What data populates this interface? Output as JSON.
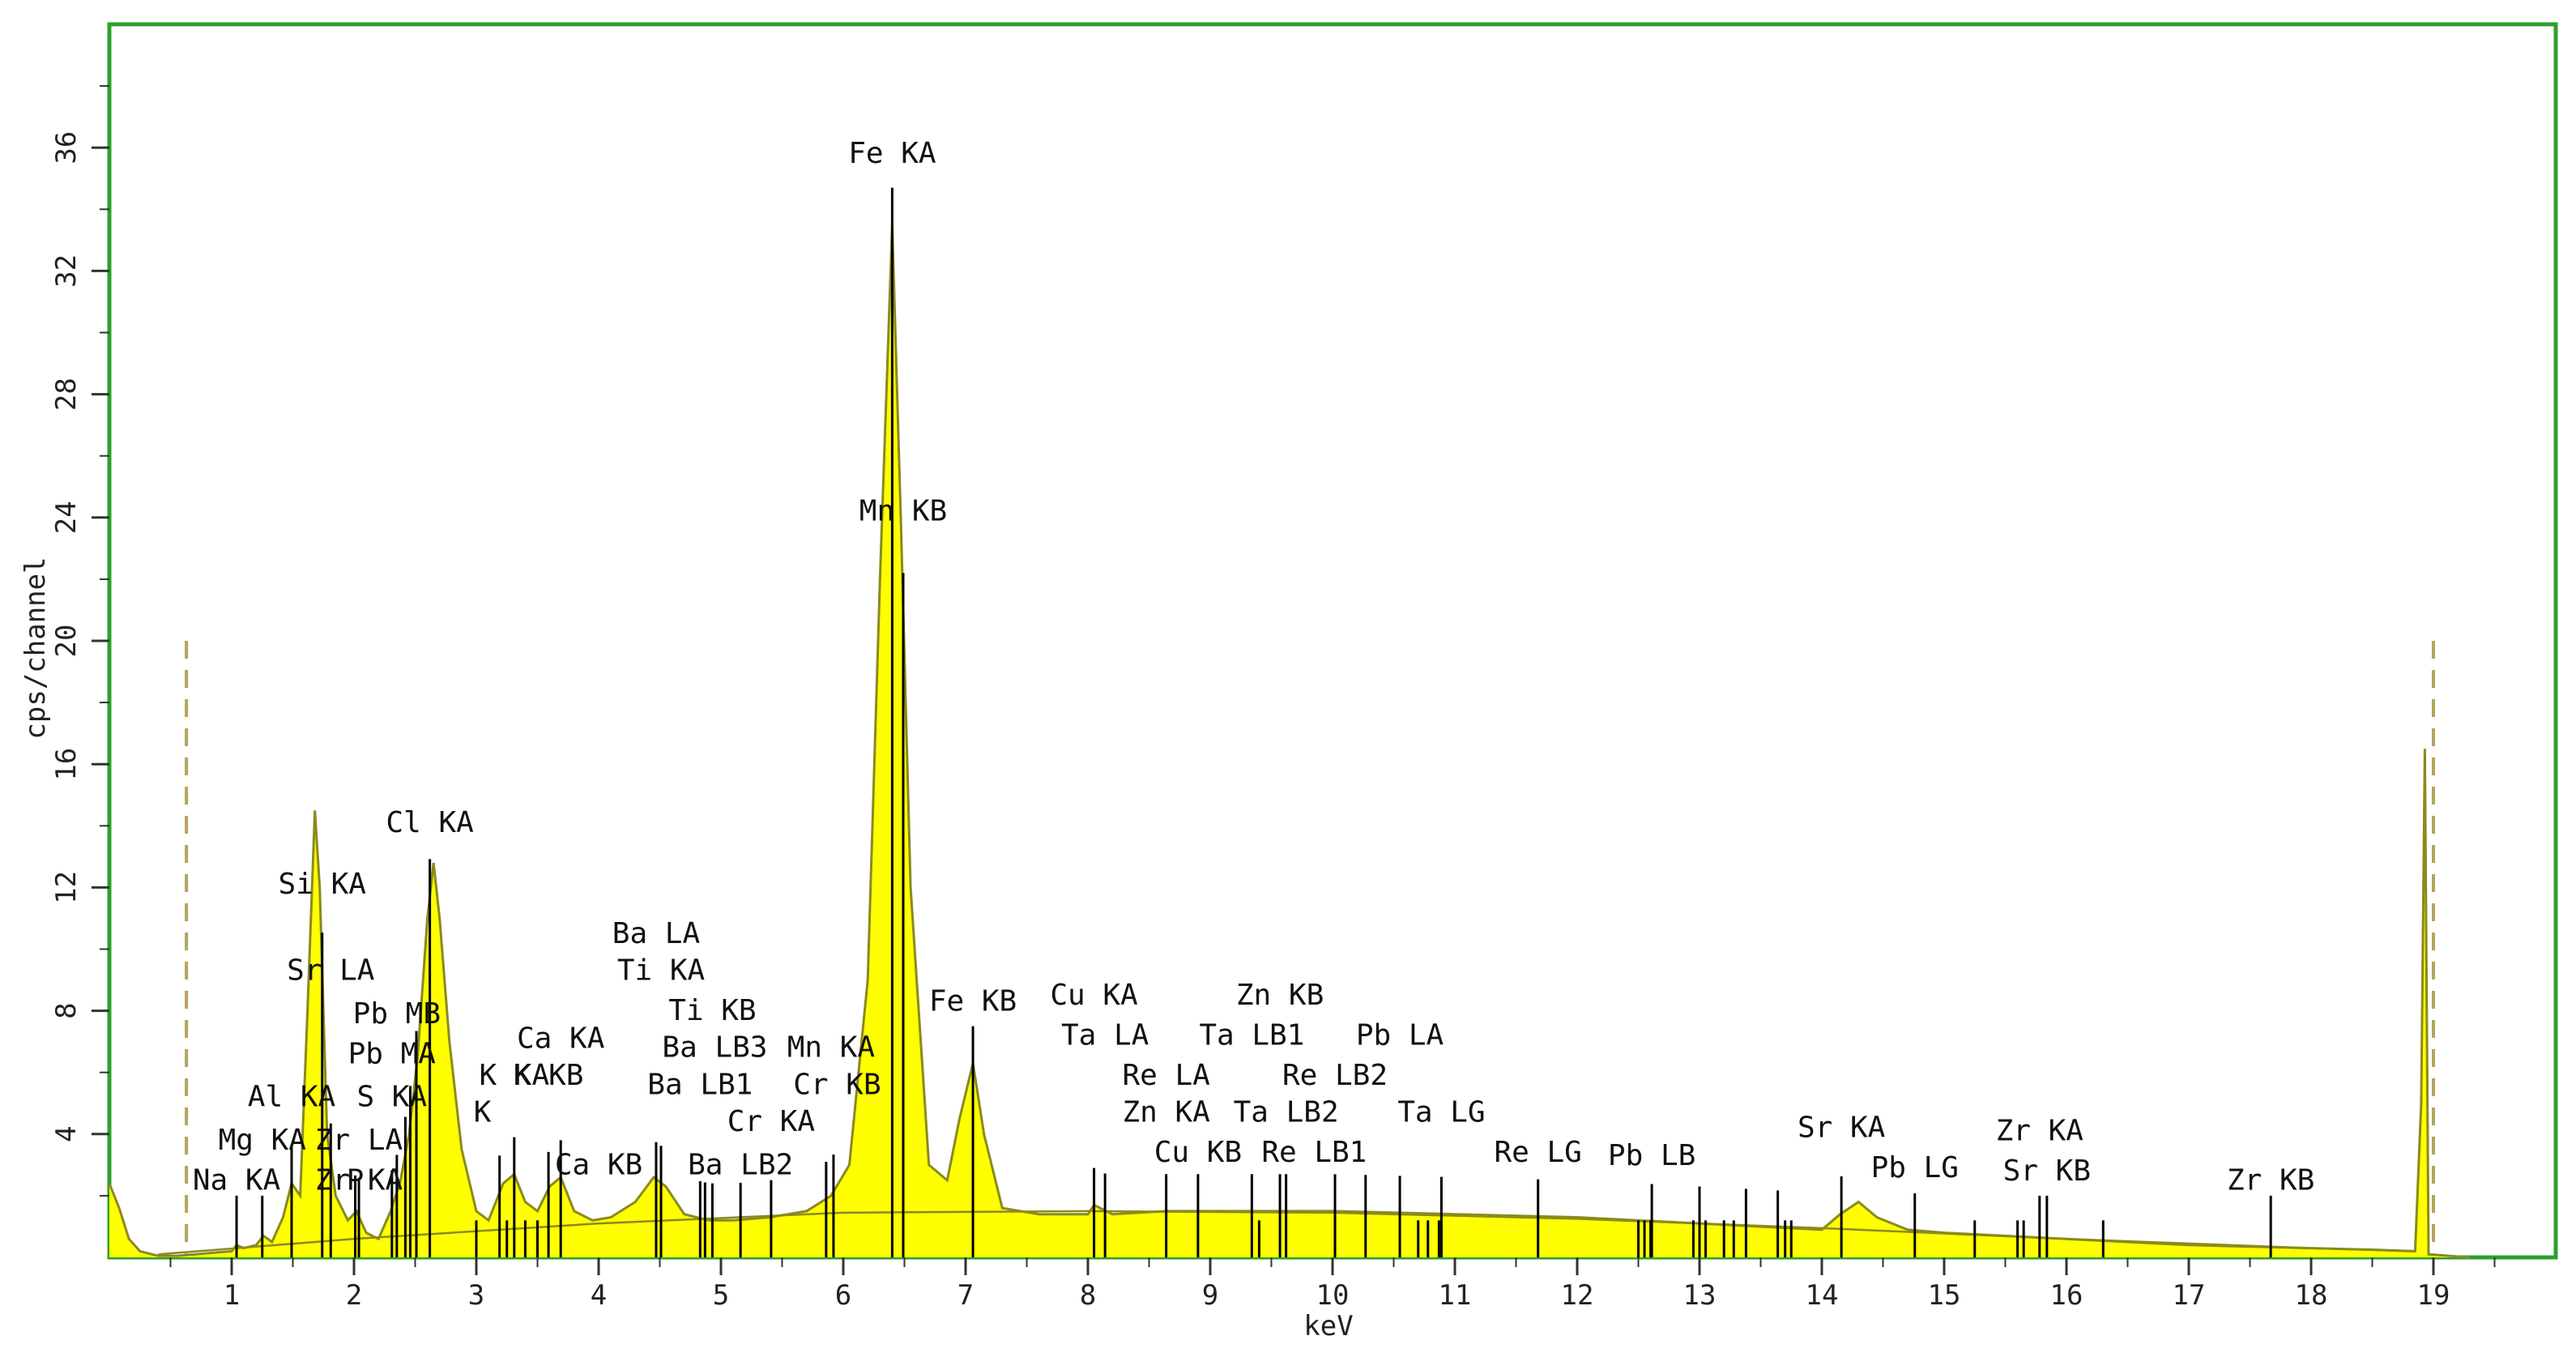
{
  "chart_data": {
    "type": "area",
    "xlabel": "keV",
    "ylabel": "cps/channel",
    "xlim": [
      0,
      20
    ],
    "ylim": [
      0,
      40
    ],
    "x_ticks": [
      1,
      2,
      3,
      4,
      5,
      6,
      7,
      8,
      9,
      10,
      11,
      12,
      13,
      14,
      15,
      16,
      17,
      18,
      19
    ],
    "y_ticks": [
      4,
      8,
      12,
      16,
      20,
      24,
      28,
      32,
      36
    ],
    "grid": false,
    "colors": {
      "frame": "#2ca02c",
      "fill": "#ffff00",
      "outline": "#8a8a20",
      "marker": "#000000",
      "roi": "#b5a45a"
    },
    "roi": [
      0.63,
      19.0
    ],
    "spectrum": [
      [
        0.0,
        2.4
      ],
      [
        0.08,
        1.6
      ],
      [
        0.16,
        0.6
      ],
      [
        0.25,
        0.2
      ],
      [
        0.4,
        0.05
      ],
      [
        0.55,
        0.05
      ],
      [
        0.7,
        0.1
      ],
      [
        0.85,
        0.15
      ],
      [
        1.0,
        0.2
      ],
      [
        1.04,
        0.4
      ],
      [
        1.1,
        0.3
      ],
      [
        1.2,
        0.4
      ],
      [
        1.26,
        0.7
      ],
      [
        1.33,
        0.5
      ],
      [
        1.42,
        1.3
      ],
      [
        1.49,
        2.4
      ],
      [
        1.56,
        2.0
      ],
      [
        1.62,
        8.0
      ],
      [
        1.68,
        14.5
      ],
      [
        1.72,
        12.0
      ],
      [
        1.78,
        4.0
      ],
      [
        1.85,
        2.0
      ],
      [
        1.95,
        1.2
      ],
      [
        2.02,
        1.5
      ],
      [
        2.1,
        0.8
      ],
      [
        2.2,
        0.6
      ],
      [
        2.3,
        1.5
      ],
      [
        2.38,
        2.5
      ],
      [
        2.45,
        4.0
      ],
      [
        2.52,
        6.5
      ],
      [
        2.6,
        11.0
      ],
      [
        2.65,
        12.8
      ],
      [
        2.7,
        11.0
      ],
      [
        2.78,
        7.0
      ],
      [
        2.88,
        3.5
      ],
      [
        3.0,
        1.5
      ],
      [
        3.1,
        1.2
      ],
      [
        3.22,
        2.4
      ],
      [
        3.31,
        2.7
      ],
      [
        3.4,
        1.8
      ],
      [
        3.5,
        1.5
      ],
      [
        3.6,
        2.3
      ],
      [
        3.69,
        2.6
      ],
      [
        3.8,
        1.5
      ],
      [
        3.95,
        1.2
      ],
      [
        4.1,
        1.3
      ],
      [
        4.3,
        1.8
      ],
      [
        4.45,
        2.6
      ],
      [
        4.55,
        2.3
      ],
      [
        4.7,
        1.4
      ],
      [
        4.9,
        1.2
      ],
      [
        5.1,
        1.2
      ],
      [
        5.4,
        1.3
      ],
      [
        5.7,
        1.5
      ],
      [
        5.9,
        2.0
      ],
      [
        6.05,
        3.0
      ],
      [
        6.2,
        9.0
      ],
      [
        6.3,
        22.0
      ],
      [
        6.4,
        33.5
      ],
      [
        6.47,
        24.0
      ],
      [
        6.55,
        12.0
      ],
      [
        6.7,
        3.0
      ],
      [
        6.85,
        2.5
      ],
      [
        6.95,
        4.5
      ],
      [
        7.06,
        6.3
      ],
      [
        7.15,
        4.0
      ],
      [
        7.3,
        1.6
      ],
      [
        7.6,
        1.4
      ],
      [
        8.0,
        1.4
      ],
      [
        8.05,
        1.7
      ],
      [
        8.2,
        1.4
      ],
      [
        8.64,
        1.5
      ],
      [
        9.0,
        1.5
      ],
      [
        10.0,
        1.5
      ],
      [
        11.0,
        1.4
      ],
      [
        12.0,
        1.3
      ],
      [
        13.0,
        1.1
      ],
      [
        13.5,
        1.0
      ],
      [
        14.0,
        0.9
      ],
      [
        14.15,
        1.4
      ],
      [
        14.3,
        1.8
      ],
      [
        14.45,
        1.3
      ],
      [
        14.7,
        0.9
      ],
      [
        15.0,
        0.8
      ],
      [
        15.5,
        0.7
      ],
      [
        16.0,
        0.6
      ],
      [
        16.5,
        0.5
      ],
      [
        17.0,
        0.4
      ],
      [
        17.5,
        0.35
      ],
      [
        18.0,
        0.3
      ],
      [
        18.5,
        0.25
      ],
      [
        18.85,
        0.2
      ],
      [
        18.9,
        5.0
      ],
      [
        18.93,
        16.5
      ],
      [
        18.96,
        0.1
      ],
      [
        19.3,
        0.0
      ]
    ],
    "markers": [
      1.04,
      1.25,
      1.49,
      1.74,
      1.81,
      2.01,
      2.04,
      2.31,
      2.35,
      2.42,
      2.46,
      2.51,
      2.62,
      3.19,
      3.31,
      3.59,
      3.69,
      4.47,
      4.51,
      4.83,
      4.87,
      4.93,
      5.16,
      5.41,
      5.86,
      5.92,
      6.4,
      6.49,
      7.06,
      8.05,
      8.14,
      8.64,
      8.9,
      9.34,
      9.57,
      9.62,
      10.02,
      10.27,
      10.55,
      10.89,
      11.68,
      12.61,
      13.0,
      13.38,
      13.64,
      14.16,
      14.76,
      15.78,
      15.84,
      17.67
    ],
    "minor_markers": [
      3.0,
      3.25,
      3.4,
      3.5,
      9.4,
      10.7,
      10.78,
      10.87,
      12.5,
      12.55,
      12.6,
      12.95,
      13.05,
      13.2,
      13.28,
      13.7,
      13.75,
      15.25,
      15.6,
      15.65,
      16.3
    ],
    "peak_labels": [
      {
        "text": "Fe  KA",
        "x": 6.4,
        "y": 35.5
      },
      {
        "text": "Mn  KB",
        "x": 6.49,
        "y": 23.9
      },
      {
        "text": "Cl  KA",
        "x": 2.62,
        "y": 13.8
      },
      {
        "text": "Si  KA",
        "x": 1.74,
        "y": 11.8
      },
      {
        "text": "Sr  LA",
        "x": 1.81,
        "y": 9.0
      },
      {
        "text": "Pb  MB",
        "x": 2.35,
        "y": 7.6
      },
      {
        "text": "Pb  MA",
        "x": 2.31,
        "y": 6.3
      },
      {
        "text": "Al  KA",
        "x": 1.49,
        "y": 4.9
      },
      {
        "text": "S  KA",
        "x": 2.31,
        "y": 4.9
      },
      {
        "text": "Mg  KA",
        "x": 1.25,
        "y": 3.5
      },
      {
        "text": "Zr  LA",
        "x": 2.04,
        "y": 3.5
      },
      {
        "text": "Na  KA",
        "x": 1.04,
        "y": 2.2
      },
      {
        "text": "P",
        "x": 2.01,
        "y": 2.2
      },
      {
        "text": "Zr  KA",
        "x": 2.04,
        "y": 2.2
      },
      {
        "text": "K",
        "x": 3.05,
        "y": 4.4
      },
      {
        "text": "K  KA",
        "x": 3.31,
        "y": 5.6
      },
      {
        "text": "Ca  KA",
        "x": 3.69,
        "y": 6.8
      },
      {
        "text": "K  KB",
        "x": 3.59,
        "y": 5.6
      },
      {
        "text": "Ca  KB",
        "x": 4.0,
        "y": 2.7
      },
      {
        "text": "Ba  LA",
        "x": 4.47,
        "y": 10.2
      },
      {
        "text": "Ti  KA",
        "x": 4.51,
        "y": 9.0
      },
      {
        "text": "Ti  KB",
        "x": 4.93,
        "y": 7.7
      },
      {
        "text": "Ba  LB3",
        "x": 4.95,
        "y": 6.5
      },
      {
        "text": "Ba  LB1",
        "x": 4.83,
        "y": 5.3
      },
      {
        "text": "Cr  KA",
        "x": 5.41,
        "y": 4.1
      },
      {
        "text": "Ba  LB2",
        "x": 5.16,
        "y": 2.7
      },
      {
        "text": "Mn  KA",
        "x": 5.9,
        "y": 6.5
      },
      {
        "text": "Cr  KB",
        "x": 5.95,
        "y": 5.3
      },
      {
        "text": "Fe  KB",
        "x": 7.06,
        "y": 8.0
      },
      {
        "text": "Cu  KA",
        "x": 8.05,
        "y": 8.2
      },
      {
        "text": "Ta  LA",
        "x": 8.14,
        "y": 6.9
      },
      {
        "text": "Re  LA",
        "x": 8.64,
        "y": 5.6
      },
      {
        "text": "Zn  KA",
        "x": 8.64,
        "y": 4.4
      },
      {
        "text": "Cu  KB",
        "x": 8.9,
        "y": 3.1
      },
      {
        "text": "Zn  KB",
        "x": 9.57,
        "y": 8.2
      },
      {
        "text": "Ta  LB1",
        "x": 9.34,
        "y": 6.9
      },
      {
        "text": "Re  LB2",
        "x": 10.02,
        "y": 5.6
      },
      {
        "text": "Ta  LB2",
        "x": 9.62,
        "y": 4.4
      },
      {
        "text": "Re  LB1",
        "x": 9.85,
        "y": 3.1
      },
      {
        "text": "Pb  LA",
        "x": 10.55,
        "y": 6.9
      },
      {
        "text": "Ta  LG",
        "x": 10.89,
        "y": 4.4
      },
      {
        "text": "Re  LG",
        "x": 11.68,
        "y": 3.1
      },
      {
        "text": "Pb  LB",
        "x": 12.61,
        "y": 3.0
      },
      {
        "text": "Sr  KA",
        "x": 14.16,
        "y": 3.9
      },
      {
        "text": "Pb  LG",
        "x": 14.76,
        "y": 2.6
      },
      {
        "text": "Zr  KA",
        "x": 15.78,
        "y": 3.8
      },
      {
        "text": "Sr  KB",
        "x": 15.84,
        "y": 2.5
      },
      {
        "text": "Zr  KB",
        "x": 17.67,
        "y": 2.2
      }
    ]
  }
}
